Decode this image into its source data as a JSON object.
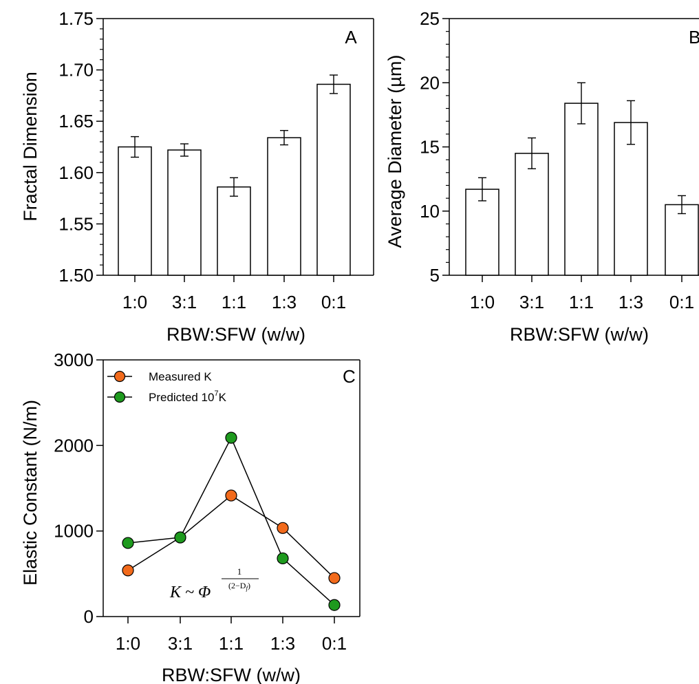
{
  "chart_data": [
    {
      "type": "bar",
      "panel_label": "A",
      "categories": [
        "1:0",
        "3:1",
        "1:1",
        "1:3",
        "0:1"
      ],
      "values": [
        1.625,
        1.622,
        1.586,
        1.634,
        1.686
      ],
      "errors": [
        0.01,
        0.006,
        0.009,
        0.007,
        0.009
      ],
      "xlabel": "RBW:SFW (w/w)",
      "ylabel": "Fractal Dimension",
      "ylim": [
        1.5,
        1.75
      ],
      "yticks": [
        "1.50",
        "1.55",
        "1.60",
        "1.65",
        "1.70",
        "1.75"
      ],
      "grid": false
    },
    {
      "type": "bar",
      "panel_label": "B",
      "categories": [
        "1:0",
        "3:1",
        "1:1",
        "1:3",
        "0:1"
      ],
      "values": [
        11.7,
        14.5,
        18.4,
        16.9,
        10.5
      ],
      "errors": [
        0.9,
        1.2,
        1.6,
        1.7,
        0.7
      ],
      "xlabel": "RBW:SFW (w/w)",
      "ylabel": "Average Diameter (µm)",
      "ylim": [
        5,
        25
      ],
      "yticks": [
        "5",
        "10",
        "15",
        "20",
        "25"
      ],
      "grid": false
    },
    {
      "type": "line",
      "panel_label": "C",
      "categories": [
        "1:0",
        "3:1",
        "1:1",
        "1:3",
        "0:1"
      ],
      "series": [
        {
          "name": "Measured K",
          "color": "#f26a1b",
          "values": [
            540,
            925,
            1415,
            1035,
            450
          ]
        },
        {
          "name_main": "Predicted 10",
          "name_sup": "7",
          "name_tail": "K",
          "color": "#1e9a1e",
          "values": [
            860,
            925,
            2090,
            680,
            135
          ]
        }
      ],
      "xlabel": "RBW:SFW (w/w)",
      "ylabel": "Elastic Constant (N/m)",
      "ylim": [
        0,
        3000
      ],
      "yticks": [
        "0",
        "1000",
        "2000",
        "3000"
      ],
      "legend_position": "top-left",
      "annotation": {
        "lhs": "K ~ Φ",
        "exp_num": "1",
        "exp_den_a": "(2−D",
        "exp_den_sub": "f",
        "exp_den_b": ")"
      },
      "grid": false
    }
  ]
}
